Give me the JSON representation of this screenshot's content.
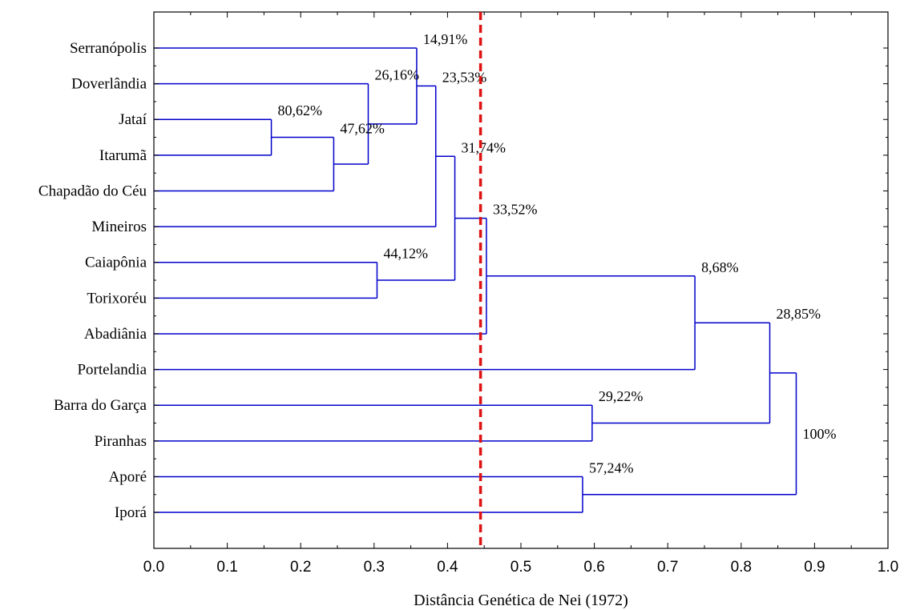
{
  "chart_data": {
    "type": "dendrogram",
    "xlabel": "Distância Genética de Nei (1972)",
    "xlim": [
      0.0,
      1.0
    ],
    "x_ticks": [
      "0.0",
      "0.1",
      "0.2",
      "0.3",
      "0.4",
      "0.5",
      "0.6",
      "0.7",
      "0.8",
      "0.9",
      "1.0"
    ],
    "leaves": [
      "Serranópolis",
      "Doverlândia",
      "Jataí",
      "Itarumã",
      "Chapadão do Céu",
      "Mineiros",
      "Caiapônia",
      "Torixoréu",
      "Abadiânia",
      "Portelandia",
      "Barra do Garça",
      "Piranhas",
      "Aporé",
      "Iporá"
    ],
    "merges": [
      {
        "id": "n1",
        "children": [
          "Jataí",
          "Itarumã"
        ],
        "height": 0.16,
        "label": "80,62%"
      },
      {
        "id": "n2",
        "children": [
          "n1",
          "Chapadão do Céu"
        ],
        "height": 0.245,
        "label": "47,62%"
      },
      {
        "id": "n3",
        "children": [
          "Doverlândia",
          "n2"
        ],
        "height": 0.292,
        "label": "26,16%"
      },
      {
        "id": "n4",
        "children": [
          "Serranópolis",
          "n3"
        ],
        "height": 0.358,
        "label": "14,91%"
      },
      {
        "id": "n5",
        "children": [
          "n4",
          "Mineiros"
        ],
        "height": 0.384,
        "label": "23,53%"
      },
      {
        "id": "n6",
        "children": [
          "Caiapônia",
          "Torixoréu"
        ],
        "height": 0.304,
        "label": "44,12%"
      },
      {
        "id": "n7",
        "children": [
          "n5",
          "n6"
        ],
        "height": 0.41,
        "label": "31,74%"
      },
      {
        "id": "n8",
        "children": [
          "n7",
          "Abadiânia"
        ],
        "height": 0.453,
        "label": "33,52%"
      },
      {
        "id": "n9",
        "children": [
          "n8",
          "Portelandia"
        ],
        "height": 0.737,
        "label": "8,68%"
      },
      {
        "id": "n10",
        "children": [
          "Barra do Garça",
          "Piranhas"
        ],
        "height": 0.597,
        "label": "29,22%"
      },
      {
        "id": "n11",
        "children": [
          "n9",
          "n10"
        ],
        "height": 0.839,
        "label": "28,85%"
      },
      {
        "id": "n12",
        "children": [
          "Aporé",
          "Iporá"
        ],
        "height": 0.584,
        "label": "57,24%"
      },
      {
        "id": "n13",
        "children": [
          "n11",
          "n12"
        ],
        "height": 0.875,
        "label": "100%"
      }
    ],
    "cutoff": 0.445,
    "colors": {
      "branches": "#0000cc",
      "cutoff": "#dd1111",
      "frame": "#000000"
    },
    "grid": false
  }
}
